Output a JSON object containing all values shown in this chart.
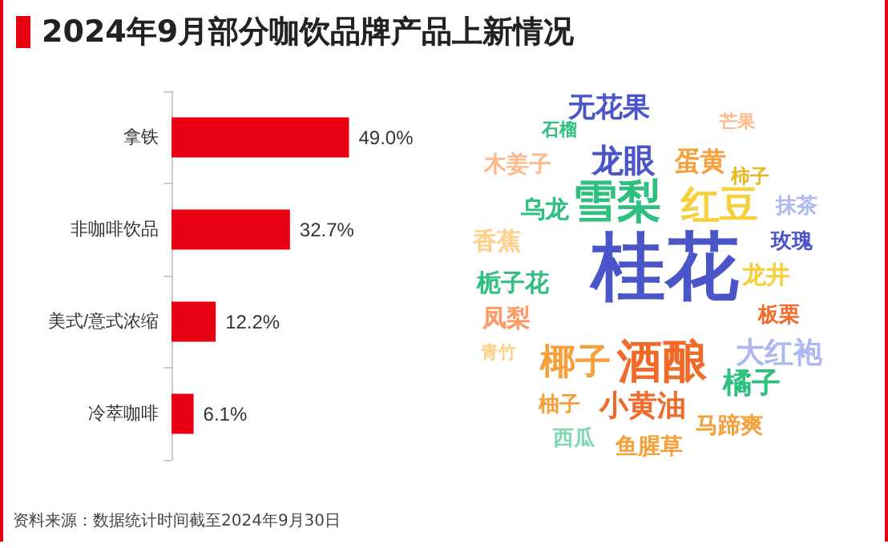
{
  "chart_data": {
    "type": "bar",
    "orientation": "horizontal",
    "title": "2024年9月部分咖饮品牌产品上新情况",
    "categories": [
      "拿铁",
      "非咖啡饮品",
      "美式/意式浓缩",
      "冷萃咖啡"
    ],
    "values": [
      49.0,
      32.7,
      12.2,
      6.1
    ],
    "value_labels": [
      "49.0%",
      "32.7%",
      "12.2%",
      "6.1%"
    ],
    "color": "#e60012",
    "annotations": [
      "资料来源：数据统计时间截至2024年9月30日",
      "无花果",
      "石榴",
      "芒果",
      "木姜子",
      "龙眼",
      "蛋黄",
      "柿子",
      "乌龙",
      "雪梨",
      "红豆",
      "抹茶",
      "香蕉",
      "桂花",
      "玫瑰",
      "栀子花",
      "龙井",
      "凤梨",
      "板栗",
      "大红袍",
      "青竹",
      "椰子",
      "酒酿",
      "橘子",
      "柚子",
      "小黄油",
      "马蹄爽",
      "西瓜",
      "鱼腥草"
    ]
  }
}
